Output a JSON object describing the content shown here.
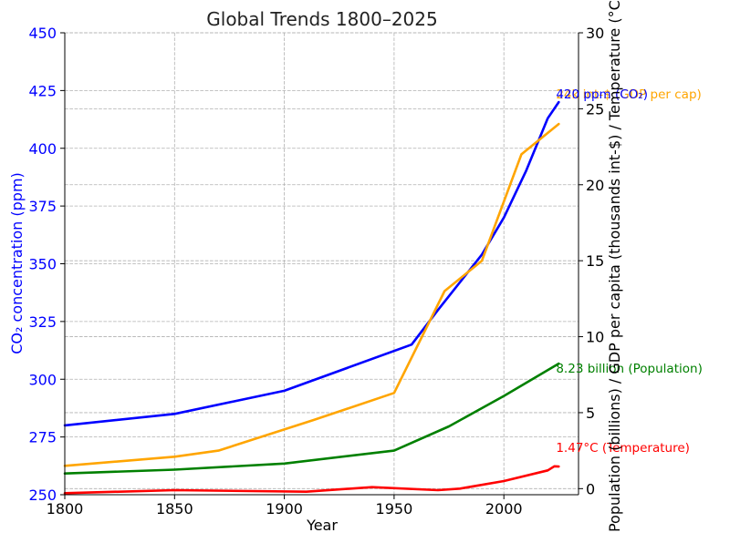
{
  "chart_data": {
    "type": "line",
    "title": "Global Trends 1800–2025",
    "xlabel": "Year",
    "ylabel_left": "CO₂ concentration (ppm)",
    "ylabel_right": "Population (billions) / GDP per capita (thousands int-$) / Temperature (°C)",
    "xlim": [
      1800,
      2034
    ],
    "ylim_left": [
      250,
      450
    ],
    "ylim_right": [
      -0.4,
      30
    ],
    "x_ticks": [
      1800,
      1850,
      1900,
      1950,
      2000
    ],
    "y_ticks_left": [
      250,
      275,
      300,
      325,
      350,
      375,
      400,
      425,
      450
    ],
    "y_ticks_right": [
      0,
      5,
      10,
      15,
      20,
      25,
      30
    ],
    "grid": true,
    "left_axis_color": "#0000ff",
    "series": [
      {
        "name": "CO₂",
        "axis": "left",
        "color": "#0000ff",
        "x": [
          1800,
          1850,
          1900,
          1958,
          1970,
          1990,
          2000,
          2010,
          2020,
          2025
        ],
        "y": [
          280,
          285,
          295,
          315,
          330,
          354,
          370,
          390,
          413,
          420
        ]
      },
      {
        "name": "GDP per cap",
        "axis": "right",
        "color": "#ffa500",
        "x": [
          1800,
          1850,
          1870,
          1913,
          1950,
          1973,
          1990,
          2008,
          2025
        ],
        "y": [
          1.5,
          2.1,
          2.5,
          4.5,
          6.3,
          13.0,
          15.0,
          22.0,
          24.0
        ]
      },
      {
        "name": "Population",
        "axis": "right",
        "color": "#008000",
        "x": [
          1800,
          1850,
          1900,
          1950,
          1975,
          2000,
          2025
        ],
        "y": [
          1.0,
          1.25,
          1.65,
          2.5,
          4.1,
          6.1,
          8.23
        ]
      },
      {
        "name": "Temperature",
        "axis": "right",
        "color": "#ff0000",
        "x": [
          1800,
          1850,
          1910,
          1940,
          1970,
          1980,
          2000,
          2020,
          2023,
          2025
        ],
        "y": [
          -0.3,
          -0.1,
          -0.2,
          0.1,
          -0.1,
          0.0,
          0.5,
          1.2,
          1.47,
          1.45
        ]
      }
    ],
    "annotations": [
      {
        "text": "24k int-$ (GDP per cap)",
        "color": "#ffa500",
        "series": "GDP per cap"
      },
      {
        "text": "420 ppm (CO₂)",
        "color": "#0000ff",
        "series": "CO₂"
      },
      {
        "text": "8.23 billion (Population)",
        "color": "#008000",
        "series": "Population"
      },
      {
        "text": "1.47°C (Temperature)",
        "color": "#ff0000",
        "series": "Temperature"
      }
    ]
  }
}
